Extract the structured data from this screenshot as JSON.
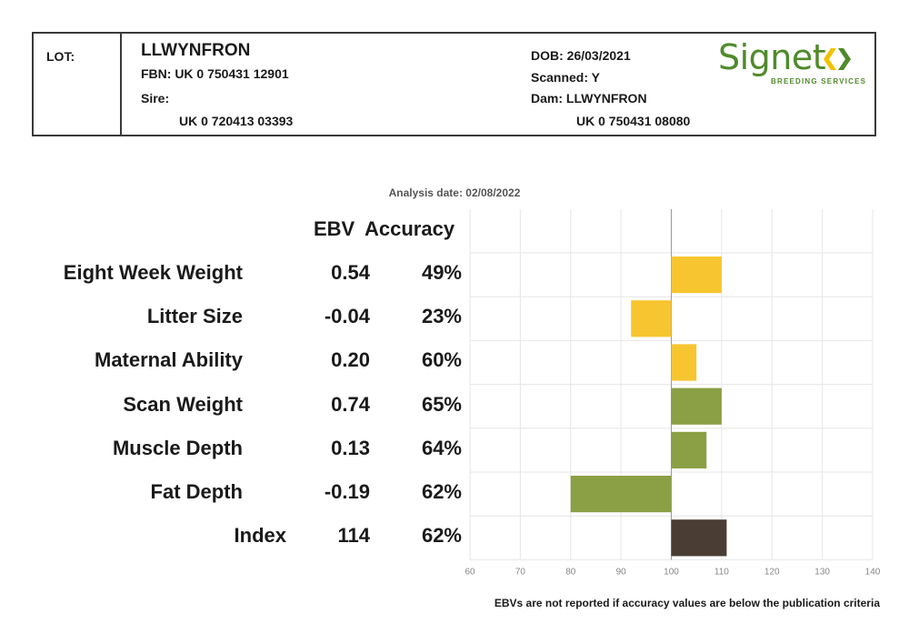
{
  "header": {
    "lot_label": "LOT:",
    "name": "LLWYNFRON",
    "fbn": "FBN: UK 0 750431 12901",
    "sire_label": "Sire:",
    "sire_id": "UK 0 720413 03393",
    "dob": "DOB: 26/03/2021",
    "scanned": "Scanned: Y",
    "dam": "Dam: LLWYNFRON",
    "dam_id": "UK 0 750431 08080",
    "logo": {
      "word": "Signet",
      "sub": "BREEDING SERVICES",
      "color": "#4f8a2b",
      "mark_color": "#f2c300"
    }
  },
  "analysis_date": "Analysis date: 02/08/2022",
  "columns": {
    "ebv": "EBV",
    "accuracy": "Accuracy"
  },
  "footnote": "EBVs are not reported if accuracy values are below the publication criteria",
  "chart_data": {
    "type": "bar",
    "orientation": "horizontal",
    "baseline": 100,
    "xlim": [
      60,
      140
    ],
    "x_ticks": [
      "60",
      "70",
      "80",
      "90",
      "100",
      "110",
      "120",
      "130",
      "140"
    ],
    "grid": true,
    "rows": [
      {
        "label": "Eight Week Weight",
        "ebv": "0.54",
        "accuracy": "49%",
        "value": 110,
        "color": "#f7c530"
      },
      {
        "label": "Litter Size",
        "ebv": "-0.04",
        "accuracy": "23%",
        "value": 92,
        "color": "#f7c530"
      },
      {
        "label": "Maternal Ability",
        "ebv": "0.20",
        "accuracy": "60%",
        "value": 105,
        "color": "#f7c530"
      },
      {
        "label": "Scan Weight",
        "ebv": "0.74",
        "accuracy": "65%",
        "value": 110,
        "color": "#8b9f45"
      },
      {
        "label": "Muscle Depth",
        "ebv": "0.13",
        "accuracy": "64%",
        "value": 107,
        "color": "#8b9f45"
      },
      {
        "label": "Fat Depth",
        "ebv": "-0.19",
        "accuracy": "62%",
        "value": 80,
        "color": "#8b9f45"
      },
      {
        "label": "Index",
        "ebv": "114",
        "accuracy": "62%",
        "value": 111,
        "color": "#4a3d33"
      }
    ]
  }
}
